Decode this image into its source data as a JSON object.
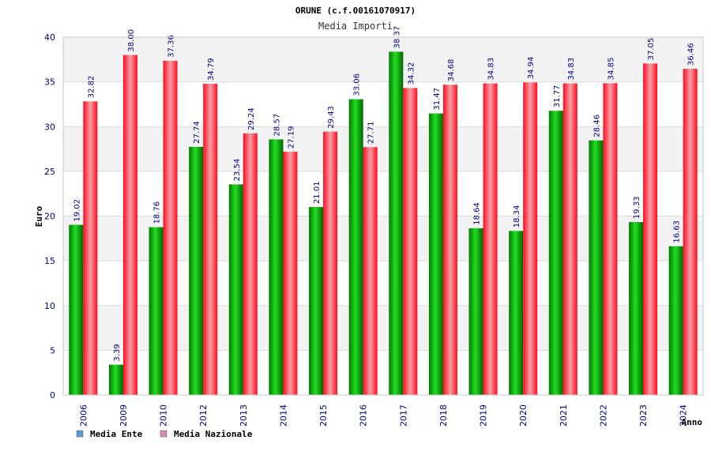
{
  "chart_data": {
    "type": "bar",
    "title": "ORUNE (c.f.00161070917)",
    "subtitle": "Media Importi",
    "xlabel": "Anno",
    "ylabel": "Euro",
    "ylim": [
      0,
      40
    ],
    "yticks": [
      0,
      5,
      10,
      15,
      20,
      25,
      30,
      35,
      40
    ],
    "categories": [
      "2006",
      "2009",
      "2010",
      "2012",
      "2013",
      "2014",
      "2015",
      "2016",
      "2017",
      "2018",
      "2019",
      "2020",
      "2021",
      "2022",
      "2023",
      "2024"
    ],
    "series": [
      {
        "name": "Media Ente",
        "color": "#00a000",
        "values": [
          19.02,
          3.39,
          18.76,
          27.74,
          23.54,
          28.57,
          21.01,
          33.06,
          38.37,
          31.47,
          18.64,
          18.34,
          31.77,
          28.46,
          19.33,
          16.63
        ],
        "labels": [
          "19.02",
          "3.39",
          "18.76",
          "27.74",
          "23.54",
          "28.57",
          "21.01",
          "33.06",
          "38.37",
          "31.47",
          "18.64",
          "18.34",
          "31.77",
          "28.46",
          "19.33",
          "16.63"
        ]
      },
      {
        "name": "Media Nazionale",
        "color": "#e8001c",
        "values": [
          32.82,
          38.0,
          37.36,
          34.79,
          29.24,
          27.19,
          29.43,
          27.71,
          34.32,
          34.68,
          34.83,
          34.94,
          34.83,
          34.85,
          37.05,
          36.46
        ],
        "labels": [
          "32.82",
          "38.00",
          "37.36",
          "34.79",
          "29.24",
          "27.19",
          "29.43",
          "27.71",
          "34.32",
          "34.68",
          "34.83",
          "34.94",
          "34.83",
          "34.85",
          "37.05",
          "36.46"
        ]
      }
    ],
    "legend": [
      {
        "label": "Media Ente",
        "swatch": "#5b9bd5"
      },
      {
        "label": "Media Nazionale",
        "swatch": "#d98cb3"
      }
    ],
    "legend_position": "bottom-left",
    "grid": true
  }
}
